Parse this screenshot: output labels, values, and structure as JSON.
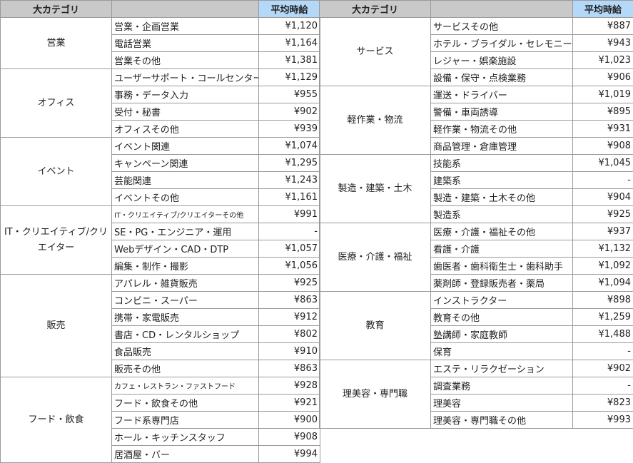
{
  "header": {
    "category": "大カテゴリ",
    "subcategory": "",
    "price": "平均時給"
  },
  "colors": {
    "header_bg": "#c9c9c9",
    "price_header_bg": "#b4d8f8",
    "border": "#9a9a9a"
  },
  "left_table": [
    {
      "category": "営業",
      "items": [
        {
          "name": "営業・企画営業",
          "price": "¥1,120"
        },
        {
          "name": "電話営業",
          "price": "¥1,164"
        },
        {
          "name": "営業その他",
          "price": "¥1,381"
        }
      ]
    },
    {
      "category": "オフィス",
      "items": [
        {
          "name": "ユーザーサポート・コールセンター",
          "price": "¥1,129"
        },
        {
          "name": "事務・データ入力",
          "price": "¥955"
        },
        {
          "name": "受付・秘書",
          "price": "¥902"
        },
        {
          "name": "オフィスその他",
          "price": "¥939"
        }
      ]
    },
    {
      "category": "イベント",
      "items": [
        {
          "name": "イベント関連",
          "price": "¥1,074"
        },
        {
          "name": "キャンペーン関連",
          "price": "¥1,295"
        },
        {
          "name": "芸能関連",
          "price": "¥1,243"
        },
        {
          "name": "イベントその他",
          "price": "¥1,161"
        }
      ]
    },
    {
      "category": "IT・クリエイティブ/クリエイター",
      "items": [
        {
          "name": "IT・クリエイティブ/クリエイターその他",
          "price": "¥991"
        },
        {
          "name": "SE・PG・エンジニア・運用",
          "price": "-"
        },
        {
          "name": "Webデザイン・CAD・DTP",
          "price": "¥1,057"
        },
        {
          "name": "編集・制作・撮影",
          "price": "¥1,056"
        }
      ]
    },
    {
      "category": "販売",
      "items": [
        {
          "name": "アパレル・雑貨販売",
          "price": "¥925"
        },
        {
          "name": "コンビニ・スーパー",
          "price": "¥863"
        },
        {
          "name": "携帯・家電販売",
          "price": "¥912"
        },
        {
          "name": "書店・CD・レンタルショップ",
          "price": "¥802"
        },
        {
          "name": "食品販売",
          "price": "¥910"
        },
        {
          "name": "販売その他",
          "price": "¥863"
        }
      ]
    },
    {
      "category": "フード・飲食",
      "items": [
        {
          "name": "カフェ・レストラン・ファストフード",
          "price": "¥928"
        },
        {
          "name": "フード・飲食その他",
          "price": "¥921"
        },
        {
          "name": "フード系専門店",
          "price": "¥900"
        },
        {
          "name": "ホール・キッチンスタッフ",
          "price": "¥908"
        },
        {
          "name": "居酒屋・バー",
          "price": "¥994"
        }
      ]
    }
  ],
  "right_table": [
    {
      "category": "サービス",
      "items": [
        {
          "name": "サービスその他",
          "price": "¥887"
        },
        {
          "name": "ホテル・ブライダル・セレモニー",
          "price": "¥943"
        },
        {
          "name": "レジャー・娯楽施設",
          "price": "¥1,023"
        },
        {
          "name": "設備・保守・点検業務",
          "price": "¥906"
        }
      ]
    },
    {
      "category": "軽作業・物流",
      "items": [
        {
          "name": "運送・ドライバー",
          "price": "¥1,019"
        },
        {
          "name": "警備・車両誘導",
          "price": "¥895"
        },
        {
          "name": "軽作業・物流その他",
          "price": "¥931"
        },
        {
          "name": "商品管理・倉庫管理",
          "price": "¥908"
        }
      ]
    },
    {
      "category": "製造・建築・土木",
      "items": [
        {
          "name": "技能系",
          "price": "¥1,045"
        },
        {
          "name": "建築系",
          "price": "-"
        },
        {
          "name": "製造・建築・土木その他",
          "price": "¥904"
        },
        {
          "name": "製造系",
          "price": "¥925"
        }
      ]
    },
    {
      "category": "医療・介護・福祉",
      "items": [
        {
          "name": "医療・介護・福祉その他",
          "price": "¥937"
        },
        {
          "name": "看護・介護",
          "price": "¥1,132"
        },
        {
          "name": "歯医者・歯科衛生士・歯科助手",
          "price": "¥1,092"
        },
        {
          "name": "薬剤師・登録販売者・薬局",
          "price": "¥1,094"
        }
      ]
    },
    {
      "category": "教育",
      "items": [
        {
          "name": "インストラクター",
          "price": "¥898"
        },
        {
          "name": "教育その他",
          "price": "¥1,259"
        },
        {
          "name": "塾講師・家庭教師",
          "price": "¥1,488"
        },
        {
          "name": "保育",
          "price": "-"
        }
      ]
    },
    {
      "category": "理美容・専門職",
      "items": [
        {
          "name": "エステ・リラクゼーション",
          "price": "¥902"
        },
        {
          "name": "調査業務",
          "price": "-"
        },
        {
          "name": "理美容",
          "price": "¥823"
        },
        {
          "name": "理美容・専門職その他",
          "price": "¥993"
        }
      ]
    }
  ]
}
